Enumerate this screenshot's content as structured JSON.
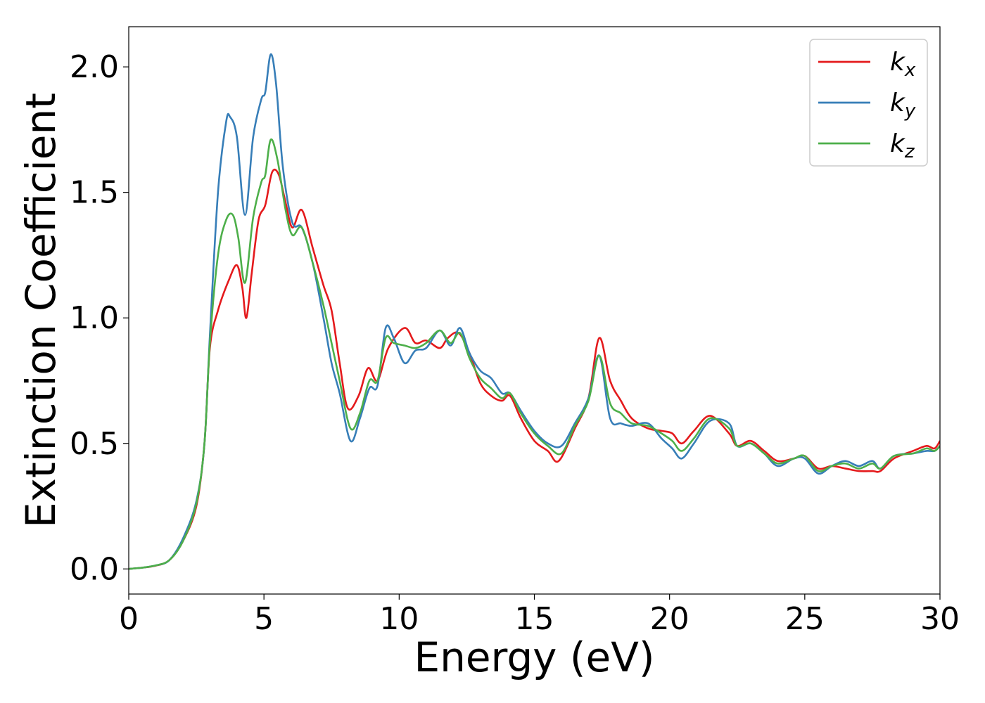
{
  "chart_data": {
    "type": "line",
    "xlabel": "Energy (eV)",
    "ylabel": "Extinction Coefficient",
    "xlim": [
      0,
      30
    ],
    "ylim": [
      -0.1,
      2.16
    ],
    "xticks": [
      0,
      5,
      10,
      15,
      20,
      25,
      30
    ],
    "xtick_labels": [
      "0",
      "5",
      "10",
      "15",
      "20",
      "25",
      "30"
    ],
    "yticks": [
      0.0,
      0.5,
      1.0,
      1.5,
      2.0
    ],
    "ytick_labels": [
      "0.0",
      "0.5",
      "1.0",
      "1.5",
      "2.0"
    ],
    "grid": false,
    "legend_position": "top-right",
    "series": [
      {
        "name": "k_x",
        "label_main": "k",
        "label_sub": "x",
        "color": "#e41a1c",
        "points": [
          [
            0,
            0
          ],
          [
            0.5,
            0.005
          ],
          [
            1,
            0.013
          ],
          [
            1.5,
            0.035
          ],
          [
            2,
            0.11
          ],
          [
            2.5,
            0.25
          ],
          [
            2.8,
            0.5
          ],
          [
            3,
            0.88
          ],
          [
            3.3,
            1.03
          ],
          [
            3.7,
            1.15
          ],
          [
            4,
            1.21
          ],
          [
            4.2,
            1.12
          ],
          [
            4.35,
            1.0
          ],
          [
            4.55,
            1.18
          ],
          [
            4.8,
            1.39
          ],
          [
            5.05,
            1.45
          ],
          [
            5.3,
            1.58
          ],
          [
            5.55,
            1.57
          ],
          [
            5.8,
            1.46
          ],
          [
            6.05,
            1.36
          ],
          [
            6.4,
            1.43
          ],
          [
            6.8,
            1.28
          ],
          [
            7.2,
            1.13
          ],
          [
            7.5,
            1.03
          ],
          [
            7.8,
            0.82
          ],
          [
            8.1,
            0.64
          ],
          [
            8.5,
            0.69
          ],
          [
            8.85,
            0.8
          ],
          [
            9.2,
            0.75
          ],
          [
            9.6,
            0.88
          ],
          [
            10.2,
            0.96
          ],
          [
            10.6,
            0.9
          ],
          [
            11,
            0.91
          ],
          [
            11.5,
            0.88
          ],
          [
            11.8,
            0.92
          ],
          [
            12.2,
            0.94
          ],
          [
            12.6,
            0.86
          ],
          [
            13,
            0.74
          ],
          [
            13.4,
            0.69
          ],
          [
            13.8,
            0.67
          ],
          [
            14.1,
            0.69
          ],
          [
            14.5,
            0.6
          ],
          [
            15,
            0.51
          ],
          [
            15.5,
            0.47
          ],
          [
            15.9,
            0.43
          ],
          [
            16.5,
            0.56
          ],
          [
            17,
            0.68
          ],
          [
            17.4,
            0.92
          ],
          [
            17.8,
            0.75
          ],
          [
            18.2,
            0.67
          ],
          [
            18.6,
            0.6
          ],
          [
            19.2,
            0.56
          ],
          [
            19.7,
            0.55
          ],
          [
            20.1,
            0.54
          ],
          [
            20.45,
            0.5
          ],
          [
            20.9,
            0.55
          ],
          [
            21.5,
            0.61
          ],
          [
            22.2,
            0.54
          ],
          [
            22.5,
            0.49
          ],
          [
            23,
            0.51
          ],
          [
            23.5,
            0.47
          ],
          [
            24,
            0.43
          ],
          [
            24.6,
            0.44
          ],
          [
            25,
            0.45
          ],
          [
            25.5,
            0.4
          ],
          [
            26,
            0.41
          ],
          [
            26.5,
            0.4
          ],
          [
            27,
            0.39
          ],
          [
            27.5,
            0.39
          ],
          [
            27.8,
            0.39
          ],
          [
            28.3,
            0.44
          ],
          [
            29,
            0.47
          ],
          [
            29.5,
            0.49
          ],
          [
            29.8,
            0.48
          ],
          [
            30,
            0.51
          ]
        ]
      },
      {
        "name": "k_y",
        "label_main": "k",
        "label_sub": "y",
        "color": "#377eb8",
        "points": [
          [
            0,
            0
          ],
          [
            0.5,
            0.005
          ],
          [
            1,
            0.014
          ],
          [
            1.5,
            0.035
          ],
          [
            2,
            0.12
          ],
          [
            2.5,
            0.27
          ],
          [
            2.8,
            0.5
          ],
          [
            3,
            0.93
          ],
          [
            3.3,
            1.5
          ],
          [
            3.6,
            1.78
          ],
          [
            3.75,
            1.8
          ],
          [
            4,
            1.72
          ],
          [
            4.3,
            1.41
          ],
          [
            4.6,
            1.72
          ],
          [
            4.9,
            1.87
          ],
          [
            5.05,
            1.9
          ],
          [
            5.25,
            2.05
          ],
          [
            5.45,
            1.93
          ],
          [
            5.7,
            1.6
          ],
          [
            6.05,
            1.38
          ],
          [
            6.4,
            1.36
          ],
          [
            6.8,
            1.22
          ],
          [
            7.2,
            1.0
          ],
          [
            7.5,
            0.82
          ],
          [
            7.8,
            0.7
          ],
          [
            8.2,
            0.51
          ],
          [
            8.55,
            0.6
          ],
          [
            8.9,
            0.72
          ],
          [
            9.2,
            0.73
          ],
          [
            9.5,
            0.96
          ],
          [
            9.8,
            0.92
          ],
          [
            10.2,
            0.82
          ],
          [
            10.6,
            0.87
          ],
          [
            11,
            0.88
          ],
          [
            11.5,
            0.95
          ],
          [
            11.9,
            0.89
          ],
          [
            12.25,
            0.96
          ],
          [
            12.6,
            0.86
          ],
          [
            13,
            0.79
          ],
          [
            13.4,
            0.76
          ],
          [
            13.8,
            0.7
          ],
          [
            14.1,
            0.7
          ],
          [
            14.5,
            0.63
          ],
          [
            15,
            0.55
          ],
          [
            15.5,
            0.5
          ],
          [
            16,
            0.49
          ],
          [
            16.5,
            0.58
          ],
          [
            17,
            0.68
          ],
          [
            17.4,
            0.85
          ],
          [
            17.8,
            0.6
          ],
          [
            18.2,
            0.58
          ],
          [
            18.6,
            0.57
          ],
          [
            19.2,
            0.58
          ],
          [
            19.7,
            0.52
          ],
          [
            20.1,
            0.48
          ],
          [
            20.45,
            0.44
          ],
          [
            20.9,
            0.5
          ],
          [
            21.5,
            0.59
          ],
          [
            22.2,
            0.58
          ],
          [
            22.5,
            0.49
          ],
          [
            23,
            0.5
          ],
          [
            23.5,
            0.46
          ],
          [
            24,
            0.41
          ],
          [
            24.6,
            0.44
          ],
          [
            25,
            0.44
          ],
          [
            25.5,
            0.38
          ],
          [
            26,
            0.41
          ],
          [
            26.5,
            0.43
          ],
          [
            27,
            0.41
          ],
          [
            27.5,
            0.43
          ],
          [
            27.8,
            0.4
          ],
          [
            28.3,
            0.45
          ],
          [
            29,
            0.46
          ],
          [
            29.5,
            0.47
          ],
          [
            29.8,
            0.47
          ],
          [
            30,
            0.49
          ]
        ]
      },
      {
        "name": "k_z",
        "label_main": "k",
        "label_sub": "z",
        "color": "#4daf4a",
        "points": [
          [
            0,
            0
          ],
          [
            0.5,
            0.005
          ],
          [
            1,
            0.014
          ],
          [
            1.5,
            0.035
          ],
          [
            2,
            0.11
          ],
          [
            2.5,
            0.26
          ],
          [
            2.8,
            0.5
          ],
          [
            3,
            0.9
          ],
          [
            3.3,
            1.25
          ],
          [
            3.6,
            1.39
          ],
          [
            3.85,
            1.41
          ],
          [
            4.05,
            1.32
          ],
          [
            4.3,
            1.14
          ],
          [
            4.6,
            1.4
          ],
          [
            4.9,
            1.54
          ],
          [
            5.05,
            1.57
          ],
          [
            5.25,
            1.71
          ],
          [
            5.5,
            1.63
          ],
          [
            5.8,
            1.43
          ],
          [
            6.05,
            1.33
          ],
          [
            6.4,
            1.36
          ],
          [
            6.8,
            1.22
          ],
          [
            7.2,
            1.05
          ],
          [
            7.5,
            0.9
          ],
          [
            7.8,
            0.75
          ],
          [
            8.2,
            0.56
          ],
          [
            8.55,
            0.62
          ],
          [
            8.9,
            0.75
          ],
          [
            9.2,
            0.75
          ],
          [
            9.5,
            0.92
          ],
          [
            9.8,
            0.9
          ],
          [
            10.2,
            0.89
          ],
          [
            10.6,
            0.88
          ],
          [
            11,
            0.9
          ],
          [
            11.5,
            0.95
          ],
          [
            11.9,
            0.9
          ],
          [
            12.25,
            0.94
          ],
          [
            12.6,
            0.84
          ],
          [
            13,
            0.76
          ],
          [
            13.4,
            0.72
          ],
          [
            13.8,
            0.68
          ],
          [
            14.1,
            0.7
          ],
          [
            14.5,
            0.62
          ],
          [
            15,
            0.54
          ],
          [
            15.5,
            0.49
          ],
          [
            16,
            0.46
          ],
          [
            16.5,
            0.57
          ],
          [
            17,
            0.67
          ],
          [
            17.4,
            0.85
          ],
          [
            17.8,
            0.66
          ],
          [
            18.2,
            0.62
          ],
          [
            18.6,
            0.58
          ],
          [
            19.2,
            0.57
          ],
          [
            19.7,
            0.54
          ],
          [
            20.1,
            0.51
          ],
          [
            20.45,
            0.47
          ],
          [
            20.9,
            0.52
          ],
          [
            21.5,
            0.6
          ],
          [
            22.2,
            0.56
          ],
          [
            22.5,
            0.49
          ],
          [
            23,
            0.5
          ],
          [
            23.5,
            0.46
          ],
          [
            24,
            0.42
          ],
          [
            24.6,
            0.44
          ],
          [
            25,
            0.45
          ],
          [
            25.5,
            0.39
          ],
          [
            26,
            0.41
          ],
          [
            26.5,
            0.42
          ],
          [
            27,
            0.4
          ],
          [
            27.5,
            0.42
          ],
          [
            27.8,
            0.4
          ],
          [
            28.3,
            0.45
          ],
          [
            29,
            0.46
          ],
          [
            29.5,
            0.48
          ],
          [
            29.8,
            0.47
          ],
          [
            30,
            0.49
          ]
        ]
      }
    ]
  }
}
